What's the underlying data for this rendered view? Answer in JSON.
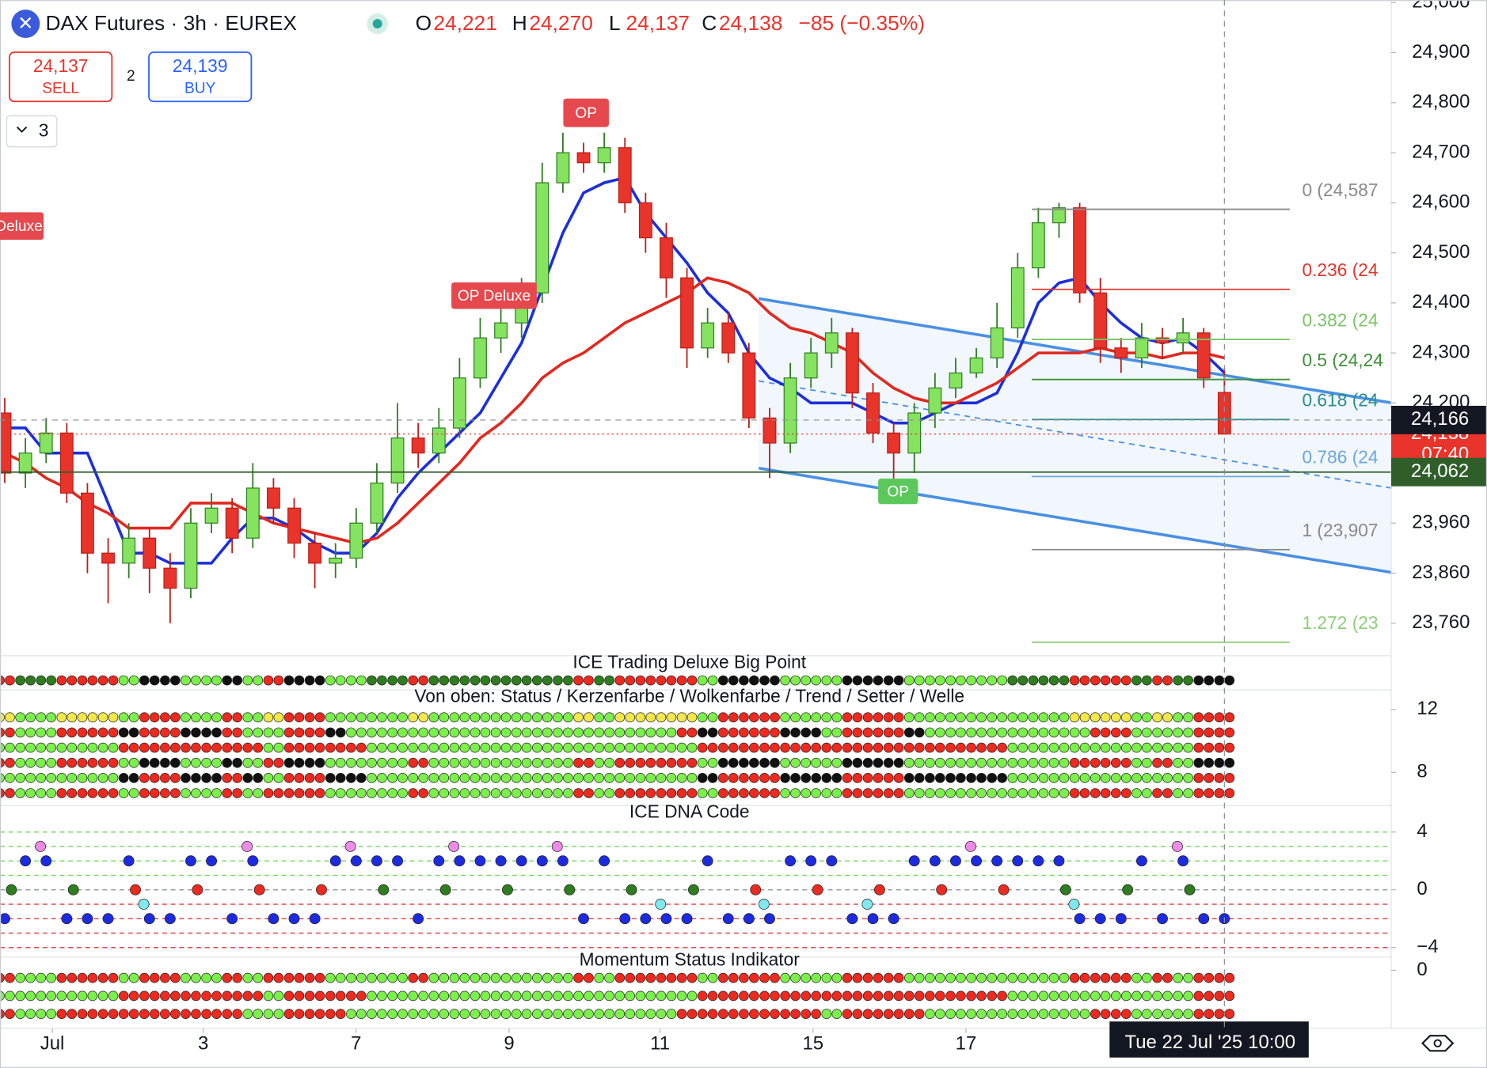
{
  "chart_data": {
    "type": "candlestick",
    "title": "DAX Futures · 3h · EUREX",
    "ohlc_keys": [
      "O",
      "H",
      "L",
      "C"
    ],
    "ohlc_labels": [
      "24,221",
      "24,270",
      "24,137",
      "24,138"
    ],
    "change_label": "−85 (−0.35%)",
    "up_color": "#86e35f",
    "down_color": "#e8342b",
    "open": [
      24180,
      24060,
      24100,
      24140,
      24020,
      23900,
      23880,
      23930,
      23870,
      23830,
      23960,
      23990,
      23930,
      24030,
      23990,
      23920,
      23880,
      23890,
      23960,
      24040,
      24130,
      24100,
      24150,
      24250,
      24330,
      24360,
      24420,
      24640,
      24700,
      24680,
      24710,
      24600,
      24530,
      24450,
      24310,
      24360,
      24300,
      24170,
      24120,
      24250,
      24300,
      24340,
      24220,
      24140,
      24100,
      24180,
      24230,
      24260,
      24290,
      24350,
      24470,
      24560,
      24590,
      24420,
      24310,
      24290,
      24330,
      24320,
      24340,
      24221
    ],
    "high": [
      24210,
      24130,
      24170,
      24160,
      24040,
      23930,
      23960,
      23950,
      23900,
      23990,
      24020,
      24010,
      24080,
      24050,
      24010,
      23940,
      23920,
      23990,
      24080,
      24200,
      24160,
      24190,
      24290,
      24370,
      24400,
      24450,
      24680,
      24740,
      24720,
      24740,
      24730,
      24620,
      24560,
      24470,
      24390,
      24380,
      24320,
      24190,
      24280,
      24330,
      24370,
      24350,
      24240,
      24160,
      24200,
      24260,
      24290,
      24310,
      24400,
      24500,
      24590,
      24600,
      24600,
      24450,
      24330,
      24360,
      24350,
      24370,
      24350,
      24270
    ],
    "low": [
      24040,
      24030,
      24080,
      24000,
      23860,
      23800,
      23850,
      23820,
      23760,
      23810,
      23940,
      23900,
      23910,
      23960,
      23890,
      23830,
      23850,
      23870,
      23940,
      24020,
      24070,
      24080,
      24130,
      24230,
      24300,
      24330,
      24400,
      24620,
      24660,
      24660,
      24580,
      24500,
      24410,
      24270,
      24290,
      24280,
      24150,
      24050,
      24100,
      24230,
      24270,
      24190,
      24120,
      24040,
      24060,
      24150,
      24210,
      24250,
      24270,
      24330,
      24450,
      24530,
      24400,
      24280,
      24260,
      24270,
      24290,
      24300,
      24230,
      24137
    ],
    "close": [
      24060,
      24100,
      24140,
      24020,
      23900,
      23880,
      23930,
      23870,
      23830,
      23960,
      23990,
      23930,
      24030,
      23990,
      23920,
      23880,
      23890,
      23960,
      24040,
      24130,
      24100,
      24150,
      24250,
      24330,
      24360,
      24420,
      24640,
      24700,
      24680,
      24710,
      24600,
      24530,
      24450,
      24310,
      24360,
      24300,
      24170,
      24120,
      24250,
      24300,
      24340,
      24220,
      24140,
      24100,
      24180,
      24230,
      24260,
      24290,
      24350,
      24470,
      24560,
      24590,
      24420,
      24310,
      24290,
      24330,
      24320,
      24340,
      24250,
      24138
    ],
    "series": [
      {
        "color": "#1c2fd8",
        "values": [
          24150,
          24150,
          24100,
          24100,
          24100,
          24000,
          23900,
          23900,
          23880,
          23880,
          23880,
          23930,
          23970,
          23970,
          23950,
          23920,
          23900,
          23900,
          23940,
          24010,
          24060,
          24100,
          24140,
          24180,
          24250,
          24320,
          24430,
          24540,
          24620,
          24640,
          24650,
          24580,
          24530,
          24480,
          24420,
          24380,
          24300,
          24250,
          24230,
          24200,
          24200,
          24200,
          24180,
          24160,
          24160,
          24180,
          24200,
          24200,
          24220,
          24300,
          24400,
          24440,
          24450,
          24400,
          24360,
          24330,
          24320,
          24330,
          24300,
          24260
        ]
      },
      {
        "color": "#e0291f",
        "values": [
          24100,
          24080,
          24050,
          24030,
          24000,
          23980,
          23950,
          23950,
          23950,
          24000,
          24000,
          24000,
          23980,
          23960,
          23950,
          23940,
          23930,
          23920,
          23930,
          23960,
          24000,
          24040,
          24080,
          24130,
          24160,
          24200,
          24250,
          24280,
          24300,
          24330,
          24360,
          24380,
          24400,
          24420,
          24450,
          24440,
          24420,
          24380,
          24350,
          24340,
          24320,
          24300,
          24260,
          24230,
          24210,
          24200,
          24200,
          24220,
          24240,
          24270,
          24300,
          24300,
          24300,
          24310,
          24300,
          24300,
          24290,
          24300,
          24300,
          24290
        ]
      }
    ],
    "xlim": [
      -0.23,
      67.07
    ],
    "xticks": [
      {
        "value": 2.3,
        "label": "Jul"
      },
      {
        "value": 9.6,
        "label": "3"
      },
      {
        "value": 17.0,
        "label": "7"
      },
      {
        "value": 24.4,
        "label": "9"
      },
      {
        "value": 31.7,
        "label": "11"
      },
      {
        "value": 39.1,
        "label": "15"
      },
      {
        "value": 46.5,
        "label": "17"
      }
    ],
    "ylim": [
      23695,
      25005
    ],
    "yticks": [
      {
        "value": 25000,
        "label": "25,000"
      },
      {
        "value": 24900,
        "label": "24,900"
      },
      {
        "value": 24800,
        "label": "24,800"
      },
      {
        "value": 24700,
        "label": "24,700"
      },
      {
        "value": 24600,
        "label": "24,600"
      },
      {
        "value": 24500,
        "label": "24,500"
      },
      {
        "value": 24400,
        "label": "24,400"
      },
      {
        "value": 24300,
        "label": "24,300"
      },
      {
        "value": 24200,
        "label": "24,200"
      },
      {
        "value": 23960,
        "label": "23,960"
      },
      {
        "value": 23860,
        "label": "23,860"
      },
      {
        "value": 23760,
        "label": "23,760"
      }
    ],
    "fib": [
      {
        "label": "0 (24,587",
        "value": 24587,
        "color": "#8a8a8a"
      },
      {
        "label": "0.236 (24",
        "value": 24427,
        "color": "#e0362c"
      },
      {
        "label": "0.382 (24",
        "value": 24327,
        "color": "#7cc46a"
      },
      {
        "label": "0.5 (24,24",
        "value": 24247,
        "color": "#3f8f3a"
      },
      {
        "label": "0.618 (24",
        "value": 24167,
        "color": "#2a8f8c"
      },
      {
        "label": "0.786 (24",
        "value": 24053,
        "color": "#6aa7dc"
      },
      {
        "label": "1 (23,907",
        "value": 23907,
        "color": "#8a8a8a"
      },
      {
        "label": "1.272 (23",
        "value": 23722,
        "color": "#8fce7a"
      }
    ],
    "crosshair_price": {
      "value": 24166,
      "label": "24,166"
    },
    "level_price": {
      "value": 24062,
      "label": "24,062"
    },
    "countdown": "07:40",
    "crosshair_time": {
      "date": "Tue 22 Jul '25",
      "time": "10:00"
    },
    "tags": [
      "Deluxe",
      "OP Deluxe",
      "OP",
      "OP"
    ],
    "panels": [
      {
        "title": "ICE Trading Deluxe Big Point"
      },
      {
        "title": "Von oben: Status / Kerzenfarbe / Wolkenfarbe / Trend / Setter / Welle",
        "ylim": [
          5.9,
          13.25
        ],
        "yticks": [
          12,
          8
        ]
      },
      {
        "title": "ICE DNA Code",
        "ylim": [
          -4.66,
          5.84
        ],
        "yticks": [
          4,
          0,
          {
            "value": -4,
            "label": "−4"
          }
        ]
      },
      {
        "title": "Momentum Status Indikator",
        "ylim": [
          -4.07,
          0.93
        ],
        "yticks": [
          0
        ]
      }
    ]
  },
  "header": {
    "sell_price": "24,137",
    "sell": "SELL",
    "quantity": "2",
    "buy_price": "24,139",
    "buy": "BUY",
    "layers": "3"
  }
}
